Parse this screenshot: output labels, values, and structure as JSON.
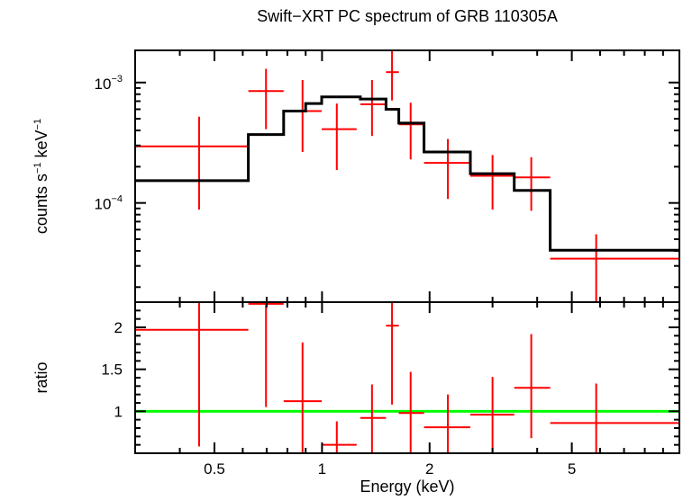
{
  "chart_data": [
    {
      "type": "scatter",
      "title": "Swift−XRT PC spectrum of GRB 110305A",
      "ylabel": "counts s⁻¹ keV⁻¹",
      "ylabel_main": "counts s",
      "ylabel_sup1": "−1",
      "ylabel_mid": " keV",
      "ylabel_sup2": "−1",
      "x_scale": "log",
      "y_scale": "log",
      "xlim": [
        0.3,
        10
      ],
      "ylim": [
        1.5e-05,
        0.00185
      ],
      "y_ticks": [
        {
          "value": 0.001,
          "base": "10",
          "exp": "−3"
        },
        {
          "value": 0.0001,
          "base": "10",
          "exp": "−4"
        }
      ],
      "series": [
        {
          "color": "#ff0000",
          "kind": "data",
          "points": [
            {
              "x": 0.453,
              "xlo": 0.3,
              "xhi": 0.622,
              "y": 0.000295,
              "ylo": 8.8e-05,
              "yhi": 0.00052
            },
            {
              "x": 0.697,
              "xlo": 0.622,
              "xhi": 0.781,
              "y": 0.00085,
              "ylo": 0.00041,
              "yhi": 0.0013
            },
            {
              "x": 0.882,
              "xlo": 0.781,
              "xhi": 0.998,
              "y": 0.00058,
              "ylo": 0.000265,
              "yhi": 0.00105
            },
            {
              "x": 1.1,
              "xlo": 0.998,
              "xhi": 1.25,
              "y": 0.00041,
              "ylo": 0.000188,
              "yhi": 0.00067
            },
            {
              "x": 1.38,
              "xlo": 1.28,
              "xhi": 1.51,
              "y": 0.00066,
              "ylo": 0.00036,
              "yhi": 0.00105
            },
            {
              "x": 1.57,
              "xlo": 1.51,
              "xhi": 1.64,
              "y": 0.00122,
              "ylo": 0.00071,
              "yhi": 0.00185
            },
            {
              "x": 1.77,
              "xlo": 1.64,
              "xhi": 1.93,
              "y": 0.00045,
              "ylo": 0.00023,
              "yhi": 0.00068
            },
            {
              "x": 2.25,
              "xlo": 1.93,
              "xhi": 2.6,
              "y": 0.000215,
              "ylo": 0.000108,
              "yhi": 0.00034
            },
            {
              "x": 3.0,
              "xlo": 2.6,
              "xhi": 3.45,
              "y": 0.000168,
              "ylo": 8.8e-05,
              "yhi": 0.00025
            },
            {
              "x": 3.85,
              "xlo": 3.45,
              "xhi": 4.35,
              "y": 0.000163,
              "ylo": 8.6e-05,
              "yhi": 0.00024
            },
            {
              "x": 5.85,
              "xlo": 4.35,
              "xhi": 10.0,
              "y": 3.45e-05,
              "ylo": 1.5e-05,
              "yhi": 5.5e-05
            }
          ]
        },
        {
          "color": "#000000",
          "kind": "model-step",
          "bins": [
            {
              "xlo": 0.3,
              "xhi": 0.622,
              "y": 0.000153
            },
            {
              "xlo": 0.622,
              "xhi": 0.781,
              "y": 0.00037
            },
            {
              "xlo": 0.781,
              "xhi": 0.9,
              "y": 0.00058
            },
            {
              "xlo": 0.9,
              "xhi": 0.998,
              "y": 0.00067
            },
            {
              "xlo": 0.998,
              "xhi": 1.28,
              "y": 0.00076
            },
            {
              "xlo": 1.28,
              "xhi": 1.51,
              "y": 0.00073
            },
            {
              "xlo": 1.51,
              "xhi": 1.64,
              "y": 0.0006
            },
            {
              "xlo": 1.64,
              "xhi": 1.93,
              "y": 0.00046
            },
            {
              "xlo": 1.93,
              "xhi": 2.6,
              "y": 0.000265
            },
            {
              "xlo": 2.6,
              "xhi": 3.45,
              "y": 0.000175
            },
            {
              "xlo": 3.45,
              "xhi": 4.35,
              "y": 0.000127
            },
            {
              "xlo": 4.35,
              "xhi": 10.0,
              "y": 4.05e-05
            }
          ]
        }
      ]
    },
    {
      "type": "scatter",
      "xlabel": "Energy (keV)",
      "ylabel": "ratio",
      "x_scale": "log",
      "xlim": [
        0.3,
        10
      ],
      "ylim": [
        0.5,
        2.3
      ],
      "x_ticks": [
        {
          "value": 0.5,
          "label": "0.5"
        },
        {
          "value": 1,
          "label": "1"
        },
        {
          "value": 2,
          "label": "2"
        },
        {
          "value": 5,
          "label": "5"
        }
      ],
      "y_ticks": [
        {
          "value": 1,
          "label": "1"
        },
        {
          "value": 1.5,
          "label": "1.5"
        },
        {
          "value": 2,
          "label": "2"
        }
      ],
      "reference_line": {
        "y": 1,
        "color": "#00ff00"
      },
      "series": [
        {
          "color": "#ff0000",
          "kind": "data",
          "points": [
            {
              "x": 0.453,
              "xlo": 0.3,
              "xhi": 0.622,
              "y": 1.97,
              "ylo": 0.58,
              "yhi": 3.4
            },
            {
              "x": 0.697,
              "xlo": 0.622,
              "xhi": 0.781,
              "y": 2.28,
              "ylo": 1.05,
              "yhi": 3.5
            },
            {
              "x": 0.882,
              "xlo": 0.781,
              "xhi": 0.998,
              "y": 1.12,
              "ylo": 0.5,
              "yhi": 1.82
            },
            {
              "x": 1.1,
              "xlo": 0.998,
              "xhi": 1.25,
              "y": 0.6,
              "ylo": 0.5,
              "yhi": 0.88
            },
            {
              "x": 1.38,
              "xlo": 1.28,
              "xhi": 1.51,
              "y": 0.92,
              "ylo": 0.5,
              "yhi": 1.32
            },
            {
              "x": 1.57,
              "xlo": 1.51,
              "xhi": 1.64,
              "y": 2.02,
              "ylo": 1.08,
              "yhi": 3.4
            },
            {
              "x": 1.77,
              "xlo": 1.64,
              "xhi": 1.93,
              "y": 0.98,
              "ylo": 0.5,
              "yhi": 1.47
            },
            {
              "x": 2.25,
              "xlo": 1.93,
              "xhi": 2.6,
              "y": 0.81,
              "ylo": 0.5,
              "yhi": 1.2
            },
            {
              "x": 3.0,
              "xlo": 2.6,
              "xhi": 3.45,
              "y": 0.96,
              "ylo": 0.5,
              "yhi": 1.41
            },
            {
              "x": 3.85,
              "xlo": 3.45,
              "xhi": 4.35,
              "y": 1.28,
              "ylo": 0.68,
              "yhi": 1.92
            },
            {
              "x": 5.85,
              "xlo": 4.35,
              "xhi": 10.0,
              "y": 0.86,
              "ylo": 0.5,
              "yhi": 1.33
            }
          ]
        }
      ]
    }
  ]
}
